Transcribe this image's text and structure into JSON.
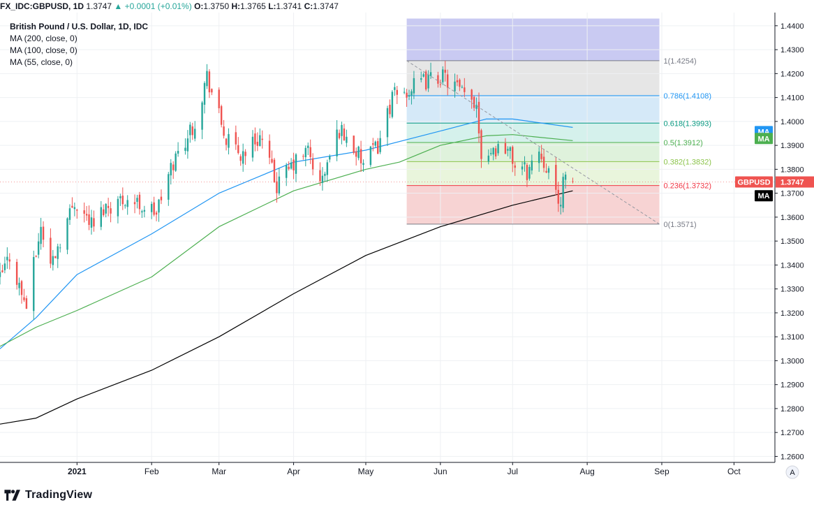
{
  "header": {
    "symbol": "FX_IDC:GBPUSD, 1D",
    "last": "1.3747",
    "change": "+0.0001 (+0.01%)",
    "o_label": "O:",
    "o": "1.3750",
    "h_label": "H:",
    "h": "1.3765",
    "l_label": "L:",
    "l": "1.3741",
    "c_label": "C:",
    "c": "1.3747"
  },
  "legend": {
    "title": "British Pound / U.S. Dollar, 1D, IDC",
    "items": [
      "MA (200, close, 0)",
      "MA (100, close, 0)",
      "MA (55, close, 0)"
    ]
  },
  "badges": {
    "ma_label": "MA",
    "symbol_label": "GBPUSD",
    "symbol_price": "1.3747"
  },
  "footer": {
    "brand": "TradingView",
    "scale_mode": "A"
  },
  "colors": {
    "up": "#26a69a",
    "down": "#ef5350",
    "ma200": "#000000",
    "ma100": "#2196f3",
    "ma55": "#4caf50"
  },
  "chart_data": {
    "type": "candlestick",
    "title": "British Pound / U.S. Dollar, 1D, IDC",
    "ylim": [
      1.2575,
      1.4455
    ],
    "y_ticks": [
      "1.2600",
      "1.2700",
      "1.2800",
      "1.2900",
      "1.3000",
      "1.3100",
      "1.3200",
      "1.3300",
      "1.3400",
      "1.3500",
      "1.3600",
      "1.3700",
      "1.3800",
      "1.3900",
      "1.4000",
      "1.4100",
      "1.4200",
      "1.4300",
      "1.4400"
    ],
    "x_ticks": [
      {
        "label": "2021",
        "date": "2021-01-01"
      },
      {
        "label": "Feb",
        "date": "2021-02-01"
      },
      {
        "label": "Mar",
        "date": "2021-03-01"
      },
      {
        "label": "Apr",
        "date": "2021-04-01"
      },
      {
        "label": "May",
        "date": "2021-05-01"
      },
      {
        "label": "Jun",
        "date": "2021-06-01"
      },
      {
        "label": "Jul",
        "date": "2021-07-01"
      },
      {
        "label": "Aug",
        "date": "2021-08-01"
      },
      {
        "label": "Sep",
        "date": "2021-09-01"
      },
      {
        "label": "Oct",
        "date": "2021-10-01"
      }
    ],
    "x_start": "2020-11-30",
    "x_end": "2021-10-18",
    "anchors": [
      [
        "2020-11-30",
        1.334
      ],
      [
        "2020-12-04",
        1.344
      ],
      [
        "2020-12-09",
        1.328
      ],
      [
        "2020-12-11",
        1.323
      ],
      [
        "2020-12-17",
        1.356
      ],
      [
        "2020-12-21",
        1.34
      ],
      [
        "2020-12-31",
        1.367
      ],
      [
        "2021-01-08",
        1.356
      ],
      [
        "2021-01-12",
        1.364
      ],
      [
        "2021-01-21",
        1.368
      ],
      [
        "2021-02-03",
        1.362
      ],
      [
        "2021-02-10",
        1.383
      ],
      [
        "2021-02-19",
        1.4
      ],
      [
        "2021-02-24",
        1.419
      ],
      [
        "2021-03-04",
        1.392
      ],
      [
        "2021-03-10",
        1.386
      ],
      [
        "2021-03-18",
        1.394
      ],
      [
        "2021-03-25",
        1.373
      ],
      [
        "2021-04-01",
        1.382
      ],
      [
        "2021-04-07",
        1.388
      ],
      [
        "2021-04-12",
        1.373
      ],
      [
        "2021-04-20",
        1.397
      ],
      [
        "2021-04-26",
        1.389
      ],
      [
        "2021-04-30",
        1.382
      ],
      [
        "2021-05-06",
        1.39
      ],
      [
        "2021-05-12",
        1.41
      ],
      [
        "2021-05-17",
        1.412
      ],
      [
        "2021-05-24",
        1.416
      ],
      [
        "2021-06-01",
        1.419
      ],
      [
        "2021-06-07",
        1.415
      ],
      [
        "2021-06-11",
        1.41
      ],
      [
        "2021-06-16",
        1.408
      ],
      [
        "2021-06-18",
        1.387
      ],
      [
        "2021-06-22",
        1.388
      ],
      [
        "2021-06-28",
        1.39
      ],
      [
        "2021-07-02",
        1.382
      ],
      [
        "2021-07-07",
        1.379
      ],
      [
        "2021-07-12",
        1.388
      ],
      [
        "2021-07-16",
        1.38
      ],
      [
        "2021-07-20",
        1.364
      ],
      [
        "2021-07-22",
        1.374
      ],
      [
        "2021-07-26",
        1.3747
      ]
    ],
    "last_ohlc": {
      "open": 1.375,
      "high": 1.3765,
      "low": 1.3741,
      "close": 1.3747
    },
    "moving_averages": [
      {
        "name": "MA (200, close, 0)",
        "color": "#000000",
        "points": [
          [
            "2020-11-30",
            1.2735
          ],
          [
            "2020-12-15",
            1.276
          ],
          [
            "2021-01-01",
            1.284
          ],
          [
            "2021-02-01",
            1.296
          ],
          [
            "2021-03-01",
            1.31
          ],
          [
            "2021-04-01",
            1.328
          ],
          [
            "2021-05-01",
            1.344
          ],
          [
            "2021-06-01",
            1.356
          ],
          [
            "2021-07-01",
            1.365
          ],
          [
            "2021-07-26",
            1.371
          ]
        ]
      },
      {
        "name": "MA (100, close, 0)",
        "color": "#2196f3",
        "points": [
          [
            "2020-11-30",
            1.305
          ],
          [
            "2020-12-15",
            1.318
          ],
          [
            "2021-01-01",
            1.336
          ],
          [
            "2021-02-01",
            1.353
          ],
          [
            "2021-03-01",
            1.37
          ],
          [
            "2021-04-01",
            1.383
          ],
          [
            "2021-05-01",
            1.388
          ],
          [
            "2021-06-01",
            1.396
          ],
          [
            "2021-06-20",
            1.401
          ],
          [
            "2021-07-01",
            1.401
          ],
          [
            "2021-07-26",
            1.3975
          ]
        ]
      },
      {
        "name": "MA (55, close, 0)",
        "color": "#4caf50",
        "points": [
          [
            "2020-11-30",
            1.306
          ],
          [
            "2020-12-15",
            1.314
          ],
          [
            "2021-01-01",
            1.321
          ],
          [
            "2021-02-01",
            1.335
          ],
          [
            "2021-03-01",
            1.356
          ],
          [
            "2021-04-01",
            1.371
          ],
          [
            "2021-05-01",
            1.38
          ],
          [
            "2021-05-15",
            1.383
          ],
          [
            "2021-06-01",
            1.39
          ],
          [
            "2021-06-20",
            1.394
          ],
          [
            "2021-07-01",
            1.3945
          ],
          [
            "2021-07-26",
            1.392
          ]
        ]
      }
    ],
    "fibonacci": {
      "start_date": "2021-05-18",
      "end_date": "2021-08-31",
      "upper_band_top": 1.443,
      "levels": [
        {
          "label": "1(1.4254)",
          "value": 1.4254,
          "color": "#787b86",
          "fill": "#e6e6e6"
        },
        {
          "label": "0.786(1.4108)",
          "value": 1.4108,
          "color": "#2196f3",
          "fill": "#d5e9f8"
        },
        {
          "label": "0.618(1.3993)",
          "value": 1.3993,
          "color": "#089981",
          "fill": "#d5f1ec"
        },
        {
          "label": "0.5(1.3912)",
          "value": 1.3912,
          "color": "#4caf50",
          "fill": "#dff2dc"
        },
        {
          "label": "0.382(1.3832)",
          "value": 1.3832,
          "color": "#8bc34a",
          "fill": "#e9f5dc"
        },
        {
          "label": "0.236(1.3732)",
          "value": 1.3732,
          "color": "#f23645",
          "fill": "#f7d3d3"
        },
        {
          "label": "0(1.3571)",
          "value": 1.3571,
          "color": "#787b86",
          "fill": ""
        }
      ]
    },
    "trend_line": [
      [
        "2021-05-18",
        1.4254
      ],
      [
        "2021-08-31",
        1.3571
      ]
    ]
  }
}
